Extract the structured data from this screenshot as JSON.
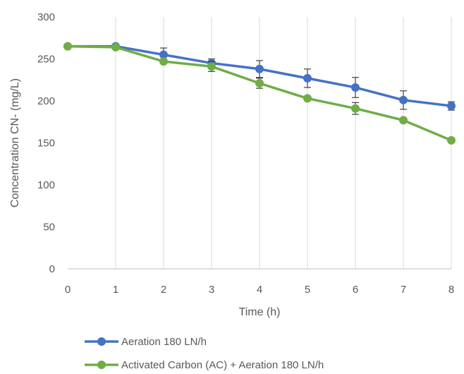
{
  "chart_data": {
    "type": "line",
    "xlabel": "Time (h)",
    "ylabel": "Concentration CN- (mg/L)",
    "xlim": [
      0,
      8
    ],
    "ylim": [
      0,
      300
    ],
    "x_ticks": [
      0,
      1,
      2,
      3,
      4,
      5,
      6,
      7,
      8
    ],
    "y_ticks": [
      0,
      50,
      100,
      150,
      200,
      250,
      300
    ],
    "grid": "vertical",
    "legend_position": "bottom",
    "x": [
      0,
      1,
      2,
      3,
      4,
      5,
      6,
      7,
      8
    ],
    "series": [
      {
        "name": "Aeration 180 LN/h",
        "color": "#4472C4",
        "values": [
          265,
          265,
          255,
          245,
          238,
          227,
          216,
          201,
          194
        ],
        "error": [
          0,
          0,
          8,
          5,
          10,
          11,
          12,
          11,
          5
        ]
      },
      {
        "name": "Activated Carbon (AC) + Aeration 180 LN/h",
        "color": "#70AD47",
        "values": [
          265,
          264,
          247,
          241,
          221,
          203,
          191,
          177,
          153
        ],
        "error": [
          0,
          0,
          0,
          6,
          6,
          0,
          7,
          0,
          0
        ]
      }
    ]
  }
}
